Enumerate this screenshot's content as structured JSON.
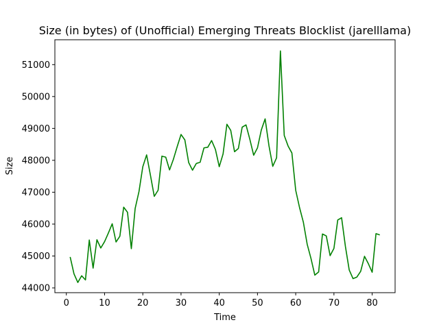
{
  "chart_data": {
    "type": "line",
    "title": "Size (in bytes) of (Unofficial) Emerging Threats Blocklist (jarelllama)",
    "xlabel": "Time",
    "ylabel": "Size",
    "xlim": [
      -3,
      86
    ],
    "ylim": [
      43850,
      51780
    ],
    "xticks": [
      0,
      10,
      20,
      30,
      40,
      50,
      60,
      70,
      80
    ],
    "yticks": [
      44000,
      45000,
      46000,
      47000,
      48000,
      49000,
      50000,
      51000
    ],
    "grid": false,
    "legend": "none",
    "series": [
      {
        "color": "#008000",
        "x": [
          1,
          2,
          3,
          4,
          5,
          6,
          7,
          8,
          9,
          10,
          11,
          12,
          13,
          14,
          15,
          16,
          17,
          18,
          19,
          20,
          21,
          22,
          23,
          24,
          25,
          26,
          27,
          28,
          29,
          30,
          31,
          32,
          33,
          34,
          35,
          36,
          37,
          38,
          39,
          40,
          41,
          42,
          43,
          44,
          45,
          46,
          47,
          48,
          49,
          50,
          51,
          52,
          53,
          54,
          55,
          56,
          57,
          58,
          59,
          60,
          61,
          62,
          63,
          64,
          65,
          66,
          67,
          68,
          69,
          70,
          71,
          72,
          73,
          74,
          75,
          76,
          77,
          78,
          79,
          80,
          81,
          82
        ],
        "y": [
          44970,
          44440,
          44170,
          44380,
          44250,
          45500,
          44620,
          45510,
          45250,
          45450,
          45720,
          46010,
          45440,
          45620,
          46530,
          46370,
          45230,
          46490,
          47020,
          47800,
          48170,
          47530,
          46870,
          47060,
          48130,
          48100,
          47700,
          48030,
          48430,
          48810,
          48640,
          47930,
          47690,
          47900,
          47940,
          48390,
          48410,
          48620,
          48340,
          47800,
          48200,
          49130,
          48940,
          48270,
          48370,
          49040,
          49110,
          48660,
          48160,
          48390,
          48950,
          49300,
          48460,
          47810,
          48080,
          51430,
          48780,
          48450,
          48230,
          47060,
          46520,
          46060,
          45370,
          44920,
          44400,
          44500,
          45690,
          45630,
          45010,
          45240,
          46130,
          46200,
          45300,
          44560,
          44290,
          44340,
          44520,
          44990,
          44760,
          44490,
          45700,
          45660
        ]
      }
    ]
  }
}
